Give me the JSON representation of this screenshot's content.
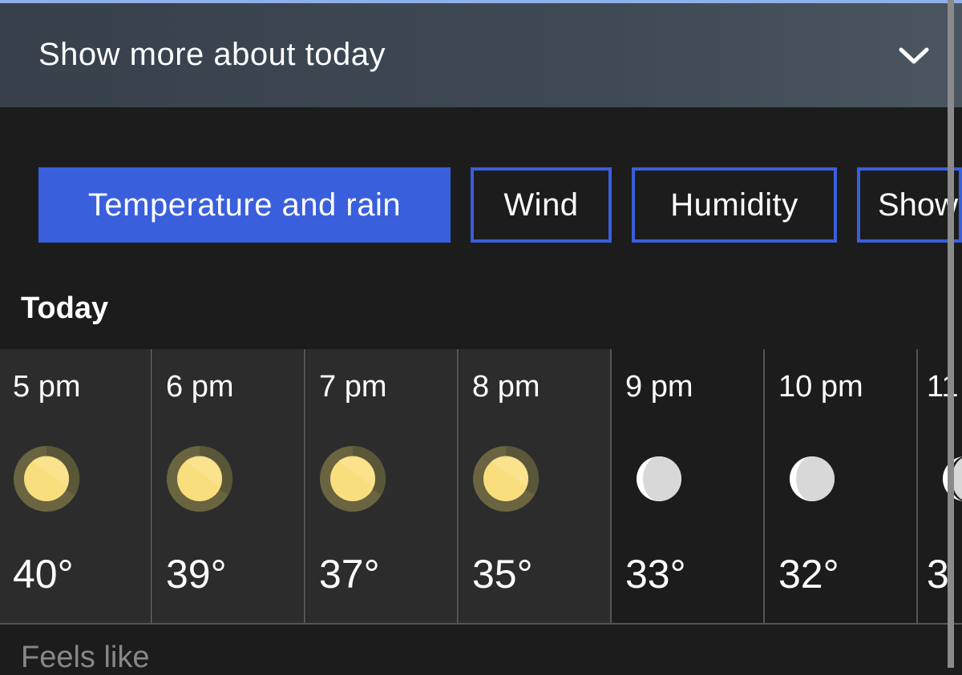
{
  "header": {
    "title": "Show more about today",
    "expand_icon": "chevron-down-icon"
  },
  "tabs": [
    {
      "label": "Temperature and rain",
      "active": true
    },
    {
      "label": "Wind",
      "active": false
    },
    {
      "label": "Humidity",
      "active": false
    },
    {
      "label": "Show",
      "active": false
    }
  ],
  "section": {
    "title": "Today"
  },
  "hours": [
    {
      "time": "5 pm",
      "icon": "sun-icon",
      "temp": "40°"
    },
    {
      "time": "6 pm",
      "icon": "sun-icon",
      "temp": "39°"
    },
    {
      "time": "7 pm",
      "icon": "sun-icon",
      "temp": "37°"
    },
    {
      "time": "8 pm",
      "icon": "sun-icon",
      "temp": "35°"
    },
    {
      "time": "9 pm",
      "icon": "moon-icon",
      "temp": "33°"
    },
    {
      "time": "10 pm",
      "icon": "moon-icon",
      "temp": "32°"
    },
    {
      "time": "11",
      "icon": "moon-icon",
      "temp": "3"
    }
  ],
  "feels_like": {
    "label": "Feels like"
  },
  "colors": {
    "accent": "#3a5fdc",
    "sun": "#f9de7e",
    "background": "#1c1c1c"
  }
}
